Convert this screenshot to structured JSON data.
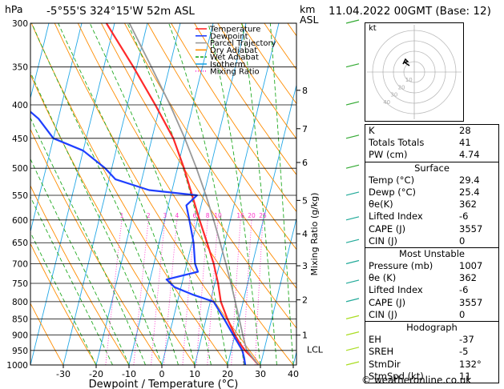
{
  "header": {
    "hpa_label": "hPa",
    "location": "-5°55'S 324°15'W 52m ASL",
    "km_label": "km",
    "asl_label": "ASL",
    "datetime": "11.04.2022 00GMT (Base: 12)"
  },
  "legend": [
    {
      "label": "Temperature",
      "color": "#ff2a2a"
    },
    {
      "label": "Dewpoint",
      "color": "#1f3fff"
    },
    {
      "label": "Parcel Trajectory",
      "color": "#999999"
    },
    {
      "label": "Dry Adiabat",
      "color": "#ff8c00"
    },
    {
      "label": "Wet Adiabat",
      "color": "#22aa22"
    },
    {
      "label": "Isotherm",
      "color": "#22a7e6"
    },
    {
      "label": "Mixing Ratio",
      "color": "#ff33cc"
    }
  ],
  "chart_data": {
    "type": "line",
    "xlabel": "Dewpoint / Temperature (°C)",
    "ylabel_right": "Mixing Ratio (g/kg)",
    "x_ticks": [
      -30,
      -20,
      -10,
      0,
      10,
      20,
      30,
      40
    ],
    "pressure_levels": [
      300,
      350,
      400,
      450,
      500,
      550,
      600,
      650,
      700,
      750,
      800,
      850,
      900,
      950,
      1000
    ],
    "km_ticks": [
      1,
      2,
      3,
      4,
      5,
      6,
      7,
      8
    ],
    "km_pressures": [
      900,
      795,
      705,
      630,
      560,
      490,
      435,
      380
    ],
    "lcl_label": "LCL",
    "lcl_pressure": 947,
    "mixing_ratio_labels": [
      "1",
      "2",
      "3",
      "4",
      "6",
      "8",
      "10",
      "16",
      "20",
      "25"
    ],
    "mixing_ratio_values": [
      1,
      2,
      3,
      4,
      6,
      8,
      10,
      16,
      20,
      25
    ],
    "series": [
      {
        "name": "Temperature",
        "p": [
          1000,
          975,
          950,
          925,
          900,
          850,
          800,
          750,
          700,
          650,
          600,
          550,
          500,
          450,
          400,
          350,
          300
        ],
        "t": [
          29.4,
          27.0,
          24.2,
          22.0,
          20.0,
          16.5,
          13.2,
          11.0,
          8.2,
          4.6,
          0.6,
          -3.5,
          -8.0,
          -13.5,
          -21.5,
          -31.0,
          -42.5
        ]
      },
      {
        "name": "Dewpoint",
        "p": [
          1000,
          975,
          950,
          925,
          900,
          850,
          800,
          780,
          760,
          740,
          720,
          700,
          650,
          600,
          570,
          550,
          540,
          520,
          500,
          470,
          450,
          420,
          400,
          370,
          350,
          300
        ],
        "t": [
          25.4,
          24.5,
          23.4,
          21.5,
          19.5,
          15.5,
          11.0,
          4.0,
          -2.0,
          -5.0,
          4.0,
          2.5,
          0.5,
          -2.5,
          -4.5,
          -2.0,
          -17.0,
          -28.0,
          -32.0,
          -40.0,
          -50.0,
          -56.0,
          -62.0,
          -64.0,
          -64.0,
          -70.0
        ]
      },
      {
        "name": "Parcel Trajectory",
        "p": [
          1000,
          947,
          900,
          850,
          800,
          750,
          700,
          650,
          600,
          550,
          500,
          450,
          400,
          350,
          300
        ],
        "t": [
          29.4,
          24.6,
          22.4,
          20.1,
          17.6,
          14.9,
          11.9,
          8.6,
          4.9,
          0.7,
          -4.2,
          -10.0,
          -17.0,
          -25.5,
          -35.5
        ]
      }
    ]
  },
  "indices": [
    {
      "label": "K",
      "value": "28"
    },
    {
      "label": "Totals Totals",
      "value": "41"
    },
    {
      "label": "PW (cm)",
      "value": "4.74"
    }
  ],
  "surface": {
    "title": "Surface",
    "rows": [
      {
        "label": "Temp (°C)",
        "value": "29.4"
      },
      {
        "label": "Dewp (°C)",
        "value": "25.4"
      },
      {
        "label": "θe(K)",
        "value": "362"
      },
      {
        "label": "Lifted Index",
        "value": "-6"
      },
      {
        "label": "CAPE (J)",
        "value": "3557"
      },
      {
        "label": "CIN (J)",
        "value": "0"
      }
    ]
  },
  "most_unstable": {
    "title": "Most Unstable",
    "rows": [
      {
        "label": "Pressure (mb)",
        "value": "1007"
      },
      {
        "label": "θe (K)",
        "value": "362"
      },
      {
        "label": "Lifted Index",
        "value": "-6"
      },
      {
        "label": "CAPE (J)",
        "value": "3557"
      },
      {
        "label": "CIN (J)",
        "value": "0"
      }
    ]
  },
  "hodograph": {
    "title": "Hodograph",
    "kt_label": "kt",
    "rings": [
      "10",
      "20",
      "30",
      "40"
    ],
    "rows": [
      {
        "label": "EH",
        "value": "-37"
      },
      {
        "label": "SREH",
        "value": "-5"
      },
      {
        "label": "StmDir",
        "value": "132°"
      },
      {
        "label": "StmSpd (kt)",
        "value": "11"
      }
    ]
  },
  "footer": "© weatheronline.co.uk"
}
